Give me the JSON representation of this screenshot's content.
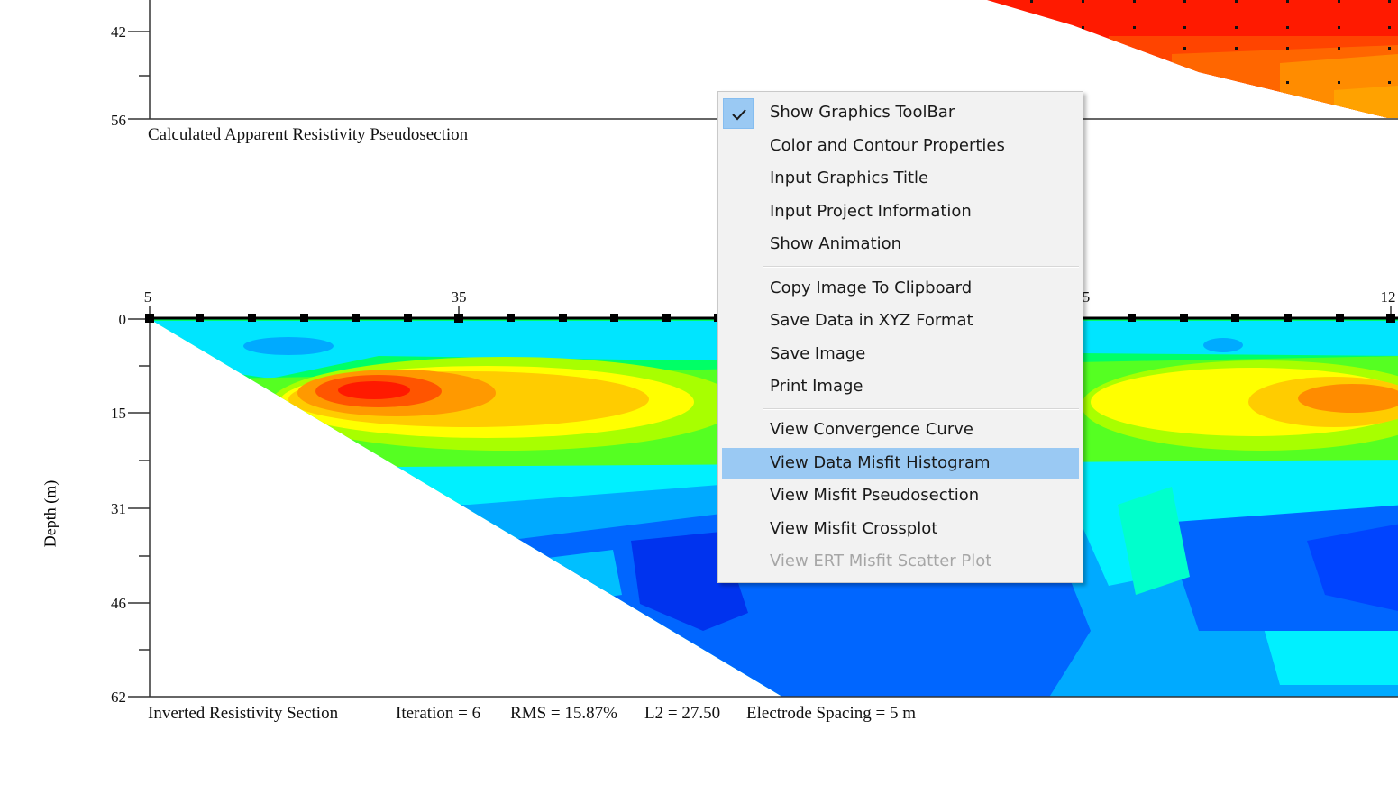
{
  "top_panel": {
    "depth_ticks": [
      "42",
      "56"
    ],
    "caption": "Calculated Apparent Resistivity Pseudosection"
  },
  "bottom_panel": {
    "x_ticks": [
      "5",
      "35",
      "5",
      "12"
    ],
    "depth_ticks": [
      "0",
      "15",
      "31",
      "46",
      "62"
    ],
    "y_axis_label": "Depth (m)",
    "caption": {
      "title": "Inverted Resistivity Section",
      "iteration": "Iteration = 6",
      "rms": "RMS = 15.87%",
      "l2": "L2 = 27.50",
      "spacing": "Electrode Spacing = 5 m"
    }
  },
  "colors": {
    "low_resistivity": "#0033ee",
    "mid_resistivity": "#00e5ff",
    "high_resistivity": "#ff1a00",
    "menu_highlight": "#9ac9f3"
  },
  "context_menu": {
    "groups": [
      [
        {
          "label": "Show Graphics ToolBar",
          "checked": true
        },
        {
          "label": "Color and Contour Properties"
        },
        {
          "label": "Input Graphics Title"
        },
        {
          "label": "Input Project Information"
        },
        {
          "label": "Show Animation"
        }
      ],
      [
        {
          "label": "Copy Image To Clipboard"
        },
        {
          "label": "Save Data in XYZ Format"
        },
        {
          "label": "Save Image"
        },
        {
          "label": "Print Image"
        }
      ],
      [
        {
          "label": "View Convergence Curve"
        },
        {
          "label": "View Data Misfit Histogram",
          "highlighted": true
        },
        {
          "label": "View Misfit Pseudosection"
        },
        {
          "label": "View Misfit Crossplot"
        },
        {
          "label": "View ERT Misfit Scatter Plot",
          "disabled": true
        }
      ]
    ]
  }
}
